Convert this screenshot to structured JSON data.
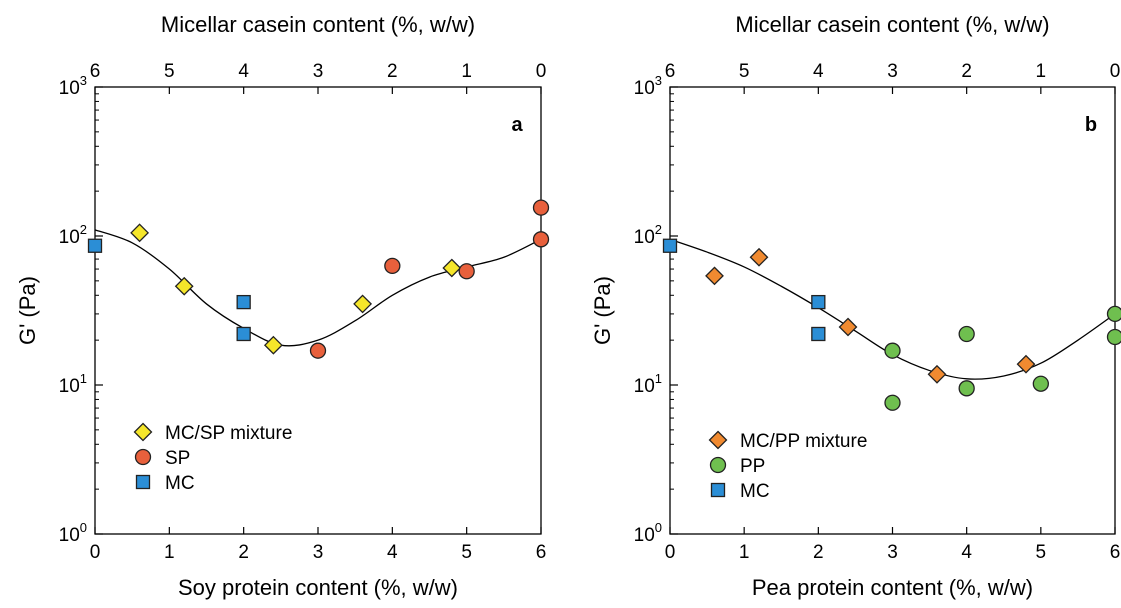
{
  "chart_data": [
    {
      "type": "scatter",
      "panel_label": "a",
      "xlabel": "Soy protein content (%, w/w)",
      "x2label": "Micellar casein content (%, w/w)",
      "ylabel": "G' (Pa)",
      "xlim": [
        0,
        6
      ],
      "x2lim": [
        6,
        0
      ],
      "ylim": [
        1,
        1000
      ],
      "yscale": "log",
      "xticks": [
        "0",
        "1",
        "2",
        "3",
        "4",
        "5",
        "6"
      ],
      "x2ticks": [
        "6",
        "5",
        "4",
        "3",
        "2",
        "1",
        "0"
      ],
      "yticks": [
        {
          "value": 1,
          "base": "10",
          "exp": "0"
        },
        {
          "value": 10,
          "base": "10",
          "exp": "1"
        },
        {
          "value": 100,
          "base": "10",
          "exp": "2"
        },
        {
          "value": 1000,
          "base": "10",
          "exp": "3"
        }
      ],
      "legend_position": "bottom-left",
      "series": [
        {
          "name": "MC/SP mixture",
          "marker": "diamond",
          "color": "#f5e62a",
          "points": [
            [
              0.6,
              105
            ],
            [
              1.2,
              46
            ],
            [
              2.4,
              18.5
            ],
            [
              3.6,
              35
            ],
            [
              4.8,
              61
            ]
          ]
        },
        {
          "name": "SP",
          "marker": "circle",
          "color": "#e8603c",
          "points": [
            [
              3,
              17
            ],
            [
              4,
              63
            ],
            [
              5,
              58
            ],
            [
              6,
              95
            ],
            [
              6,
              155
            ]
          ]
        },
        {
          "name": "MC",
          "marker": "square",
          "color": "#2b8ed6",
          "points": [
            [
              0,
              86
            ],
            [
              2,
              36
            ],
            [
              2,
              22
            ]
          ]
        }
      ],
      "fit_curve": [
        [
          0,
          110
        ],
        [
          0.5,
          90
        ],
        [
          1,
          60
        ],
        [
          1.5,
          35
        ],
        [
          2,
          24
        ],
        [
          2.5,
          18.5
        ],
        [
          3,
          20
        ],
        [
          3.5,
          27
        ],
        [
          4,
          40
        ],
        [
          4.5,
          53
        ],
        [
          5,
          62
        ],
        [
          5.5,
          72
        ],
        [
          6,
          95
        ]
      ]
    },
    {
      "type": "scatter",
      "panel_label": "b",
      "xlabel": "Pea protein content (%, w/w)",
      "x2label": "Micellar casein content (%, w/w)",
      "ylabel": "G' (Pa)",
      "xlim": [
        0,
        6
      ],
      "x2lim": [
        6,
        0
      ],
      "ylim": [
        1,
        1000
      ],
      "yscale": "log",
      "xticks": [
        "0",
        "1",
        "2",
        "3",
        "4",
        "5",
        "6"
      ],
      "x2ticks": [
        "6",
        "5",
        "4",
        "3",
        "2",
        "1",
        "0"
      ],
      "yticks": [
        {
          "value": 1,
          "base": "10",
          "exp": "0"
        },
        {
          "value": 10,
          "base": "10",
          "exp": "1"
        },
        {
          "value": 100,
          "base": "10",
          "exp": "2"
        },
        {
          "value": 1000,
          "base": "10",
          "exp": "3"
        }
      ],
      "legend_position": "bottom-left",
      "series": [
        {
          "name": "MC/PP mixture",
          "marker": "diamond",
          "color": "#f08a30",
          "points": [
            [
              0.6,
              54
            ],
            [
              1.2,
              72
            ],
            [
              2.4,
              24.5
            ],
            [
              3.6,
              11.8
            ],
            [
              4.8,
              13.8
            ]
          ]
        },
        {
          "name": "PP",
          "marker": "circle",
          "color": "#6fbf4f",
          "points": [
            [
              3,
              17
            ],
            [
              3,
              7.6
            ],
            [
              4,
              22
            ],
            [
              4,
              9.5
            ],
            [
              5,
              10.2
            ],
            [
              6,
              30
            ],
            [
              6,
              21
            ]
          ]
        },
        {
          "name": "MC",
          "marker": "square",
          "color": "#2b8ed6",
          "points": [
            [
              0,
              86
            ],
            [
              2,
              36
            ],
            [
              2,
              22
            ]
          ]
        }
      ],
      "fit_curve": [
        [
          0,
          95
        ],
        [
          0.5,
          78
        ],
        [
          1,
          62
        ],
        [
          1.5,
          46
        ],
        [
          2,
          33
        ],
        [
          2.5,
          23
        ],
        [
          3,
          16
        ],
        [
          3.5,
          12.5
        ],
        [
          4,
          11
        ],
        [
          4.5,
          11.5
        ],
        [
          5,
          14
        ],
        [
          5.5,
          20
        ],
        [
          6,
          30
        ]
      ]
    }
  ]
}
